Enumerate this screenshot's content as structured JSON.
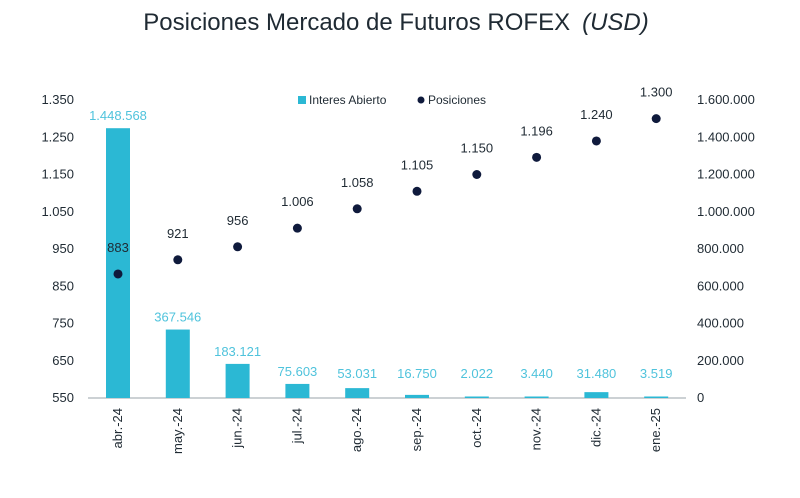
{
  "chart_data": {
    "type": "bar+scatter",
    "title": "Posiciones Mercado de Futuros ROFEX",
    "title_unit": "(USD)",
    "categories": [
      "abr.-24",
      "may.-24",
      "jun.-24",
      "jul.-24",
      "ago.-24",
      "sep.-24",
      "oct.-24",
      "nov.-24",
      "dic.-24",
      "ene.-25"
    ],
    "series": [
      {
        "name": "Interes Abierto",
        "type": "bar",
        "axis": "right",
        "color": "#2bb8d4",
        "label_color": "#4fc3dc",
        "values": [
          1448568,
          367546,
          183121,
          75603,
          53031,
          16750,
          2022,
          3440,
          31480,
          3519
        ],
        "labels": [
          "1.448.568",
          "367.546",
          "183.121",
          "75.603",
          "53.031",
          "16.750",
          "2.022",
          "3.440",
          "31.480",
          "3.519"
        ]
      },
      {
        "name": "Posiciones",
        "type": "scatter",
        "axis": "left",
        "color": "#0f1a3c",
        "values": [
          883,
          921,
          956,
          1006,
          1058,
          1105,
          1150,
          1196,
          1240,
          1300
        ],
        "labels": [
          "883",
          "921",
          "956",
          "1.006",
          "1.058",
          "1.105",
          "1.150",
          "1.196",
          "1.240",
          "1.300"
        ]
      }
    ],
    "y_left": {
      "min": 550,
      "max": 1350,
      "ticks": [
        550,
        650,
        750,
        850,
        950,
        1050,
        1150,
        1250,
        1350
      ],
      "tick_labels": [
        "550",
        "650",
        "750",
        "850",
        "950",
        "1.050",
        "1.150",
        "1.250",
        "1.350"
      ]
    },
    "y_right": {
      "min": 0,
      "max": 1600000,
      "ticks": [
        0,
        200000,
        400000,
        600000,
        800000,
        1000000,
        1200000,
        1400000,
        1600000
      ],
      "tick_labels": [
        "0",
        "200.000",
        "400.000",
        "600.000",
        "800.000",
        "1.000.000",
        "1.200.000",
        "1.400.000",
        "1.600.000"
      ]
    },
    "legend_position": "top-center",
    "grid": false
  }
}
